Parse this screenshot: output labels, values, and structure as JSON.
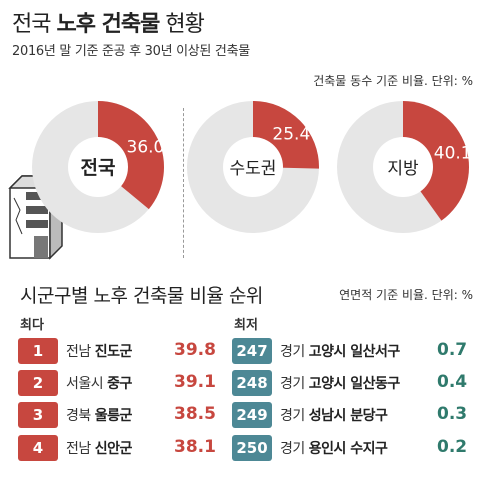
{
  "header": {
    "title_prefix": "전국",
    "title_bold": "노후 건축물",
    "title_suffix": "현황",
    "subtitle": "2016년 말 기준 준공 후 30년 이상된 건축물",
    "pie_unit": "건축물 동수 기준 비율. 단위: %"
  },
  "chart_data": [
    {
      "type": "pie",
      "title": "전국",
      "values": [
        36.0
      ],
      "labels": [
        "36.0"
      ],
      "colors": {
        "slice": "#c7473f",
        "rest": "#e6e6e6"
      }
    },
    {
      "type": "pie",
      "title": "수도권",
      "values": [
        25.4
      ],
      "labels": [
        "25.4"
      ],
      "colors": {
        "slice": "#c7473f",
        "rest": "#e6e6e6"
      }
    },
    {
      "type": "pie",
      "title": "지방",
      "values": [
        40.1
      ],
      "labels": [
        "40.1"
      ],
      "colors": {
        "slice": "#c7473f",
        "rest": "#e6e6e6"
      }
    },
    {
      "type": "table",
      "title": "시군구별 노후 건축물 비율 순위",
      "unit": "연면적 기준 비율. 단위: %",
      "highest": {
        "label": "최다",
        "rows": [
          {
            "rank": "1",
            "region": "전남",
            "city": "진도군",
            "value": "39.8"
          },
          {
            "rank": "2",
            "region": "서울시",
            "city": "중구",
            "value": "39.1"
          },
          {
            "rank": "3",
            "region": "경북",
            "city": "울릉군",
            "value": "38.5"
          },
          {
            "rank": "4",
            "region": "전남",
            "city": "신안군",
            "value": "38.1"
          }
        ]
      },
      "lowest": {
        "label": "최저",
        "rows": [
          {
            "rank": "247",
            "region": "경기",
            "city": "고양시 일산서구",
            "value": "0.7"
          },
          {
            "rank": "248",
            "region": "경기",
            "city": "고양시 일산동구",
            "value": "0.4"
          },
          {
            "rank": "249",
            "region": "경기",
            "city": "성남시 분당구",
            "value": "0.3"
          },
          {
            "rank": "250",
            "region": "경기",
            "city": "용인시 수지구",
            "value": "0.2"
          }
        ]
      }
    }
  ]
}
